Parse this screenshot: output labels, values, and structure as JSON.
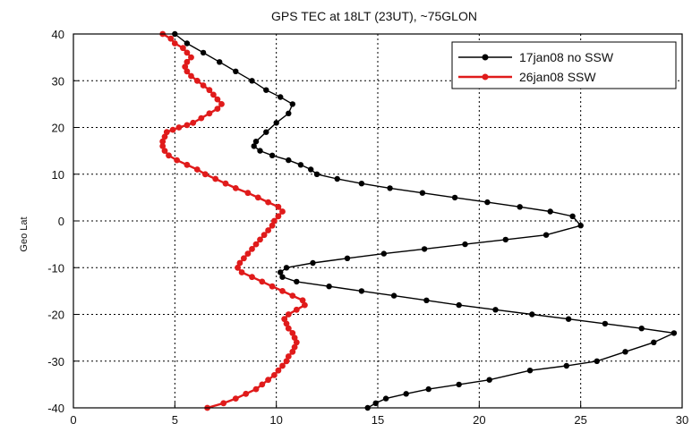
{
  "chart_data": {
    "type": "line",
    "title": "GPS TEC at 18LT (23UT), ~75GLON",
    "xlabel": "",
    "ylabel": "Geo Lat",
    "xlim": [
      0,
      30
    ],
    "ylim": [
      -40,
      40
    ],
    "xticks": [
      0,
      5,
      10,
      15,
      20,
      25,
      30
    ],
    "yticks": [
      -40,
      -30,
      -20,
      -10,
      0,
      10,
      20,
      30,
      40
    ],
    "grid": true,
    "legend_position": "top-right",
    "series": [
      {
        "name": "17jan08 no SSW",
        "color": "#000000",
        "marker": "circle",
        "points": [
          [
            5.0,
            40
          ],
          [
            5.6,
            38
          ],
          [
            6.4,
            36
          ],
          [
            7.2,
            34
          ],
          [
            8.0,
            32
          ],
          [
            8.8,
            30
          ],
          [
            9.5,
            28
          ],
          [
            10.2,
            26.5
          ],
          [
            10.8,
            25
          ],
          [
            10.6,
            23
          ],
          [
            10.0,
            21
          ],
          [
            9.5,
            19
          ],
          [
            9.0,
            17
          ],
          [
            8.9,
            16
          ],
          [
            9.2,
            15
          ],
          [
            9.8,
            14
          ],
          [
            10.6,
            13
          ],
          [
            11.2,
            12
          ],
          [
            11.7,
            11
          ],
          [
            12.0,
            10
          ],
          [
            13.0,
            9
          ],
          [
            14.2,
            8
          ],
          [
            15.6,
            7
          ],
          [
            17.2,
            6
          ],
          [
            18.8,
            5
          ],
          [
            20.4,
            4
          ],
          [
            22.0,
            3
          ],
          [
            23.5,
            2
          ],
          [
            24.6,
            1
          ],
          [
            25.0,
            -1
          ],
          [
            23.3,
            -3
          ],
          [
            21.3,
            -4
          ],
          [
            19.3,
            -5
          ],
          [
            17.3,
            -6
          ],
          [
            15.3,
            -7
          ],
          [
            13.5,
            -8
          ],
          [
            11.8,
            -9
          ],
          [
            10.5,
            -10
          ],
          [
            10.2,
            -11
          ],
          [
            10.3,
            -12
          ],
          [
            11.0,
            -13
          ],
          [
            12.6,
            -14
          ],
          [
            14.2,
            -15
          ],
          [
            15.8,
            -16
          ],
          [
            17.4,
            -17
          ],
          [
            19.0,
            -18
          ],
          [
            20.8,
            -19
          ],
          [
            22.6,
            -20
          ],
          [
            24.4,
            -21
          ],
          [
            26.2,
            -22
          ],
          [
            28.0,
            -23
          ],
          [
            29.6,
            -24
          ],
          [
            28.6,
            -26
          ],
          [
            27.2,
            -28
          ],
          [
            25.8,
            -30
          ],
          [
            24.3,
            -31
          ],
          [
            22.5,
            -32
          ],
          [
            20.5,
            -34
          ],
          [
            19.0,
            -35
          ],
          [
            17.5,
            -36
          ],
          [
            16.4,
            -37
          ],
          [
            15.4,
            -38
          ],
          [
            14.9,
            -39
          ],
          [
            14.5,
            -40
          ]
        ]
      },
      {
        "name": "26jan08 SSW",
        "color": "#e01b1b",
        "marker": "circle",
        "points": [
          [
            4.4,
            40
          ],
          [
            4.8,
            39
          ],
          [
            5.0,
            38
          ],
          [
            5.4,
            37
          ],
          [
            5.6,
            36
          ],
          [
            5.8,
            35
          ],
          [
            5.6,
            34
          ],
          [
            5.5,
            33
          ],
          [
            5.6,
            32
          ],
          [
            5.8,
            31
          ],
          [
            6.1,
            30
          ],
          [
            6.4,
            29
          ],
          [
            6.7,
            28
          ],
          [
            6.9,
            27
          ],
          [
            7.1,
            26
          ],
          [
            7.3,
            25
          ],
          [
            7.1,
            24
          ],
          [
            6.7,
            23
          ],
          [
            6.3,
            22
          ],
          [
            5.9,
            21
          ],
          [
            5.6,
            20.5
          ],
          [
            5.2,
            20
          ],
          [
            4.9,
            19.5
          ],
          [
            4.6,
            19
          ],
          [
            4.5,
            18
          ],
          [
            4.4,
            17
          ],
          [
            4.4,
            16
          ],
          [
            4.5,
            15
          ],
          [
            4.7,
            14
          ],
          [
            5.1,
            13
          ],
          [
            5.6,
            12
          ],
          [
            6.1,
            11
          ],
          [
            6.5,
            10
          ],
          [
            7.0,
            9
          ],
          [
            7.5,
            8
          ],
          [
            8.0,
            7
          ],
          [
            8.6,
            6
          ],
          [
            9.1,
            5
          ],
          [
            9.6,
            4
          ],
          [
            10.1,
            3
          ],
          [
            10.3,
            2
          ],
          [
            10.1,
            1
          ],
          [
            9.9,
            0
          ],
          [
            9.8,
            -1
          ],
          [
            9.6,
            -2
          ],
          [
            9.4,
            -3
          ],
          [
            9.2,
            -4
          ],
          [
            9.0,
            -5
          ],
          [
            8.8,
            -6
          ],
          [
            8.6,
            -7
          ],
          [
            8.4,
            -8
          ],
          [
            8.2,
            -9
          ],
          [
            8.1,
            -10
          ],
          [
            8.3,
            -11
          ],
          [
            8.8,
            -12
          ],
          [
            9.3,
            -13
          ],
          [
            9.8,
            -14
          ],
          [
            10.3,
            -15
          ],
          [
            10.8,
            -16
          ],
          [
            11.3,
            -17
          ],
          [
            11.4,
            -18
          ],
          [
            11.0,
            -19
          ],
          [
            10.6,
            -20
          ],
          [
            10.4,
            -21
          ],
          [
            10.5,
            -22
          ],
          [
            10.6,
            -23
          ],
          [
            10.8,
            -24
          ],
          [
            10.9,
            -25
          ],
          [
            11.0,
            -26
          ],
          [
            10.9,
            -27
          ],
          [
            10.8,
            -28
          ],
          [
            10.6,
            -29
          ],
          [
            10.5,
            -30
          ],
          [
            10.3,
            -31
          ],
          [
            10.1,
            -32
          ],
          [
            9.9,
            -33
          ],
          [
            9.6,
            -34
          ],
          [
            9.3,
            -35
          ],
          [
            9.0,
            -36
          ],
          [
            8.5,
            -37
          ],
          [
            8.0,
            -38
          ],
          [
            7.4,
            -39
          ],
          [
            6.6,
            -40
          ]
        ]
      }
    ]
  }
}
